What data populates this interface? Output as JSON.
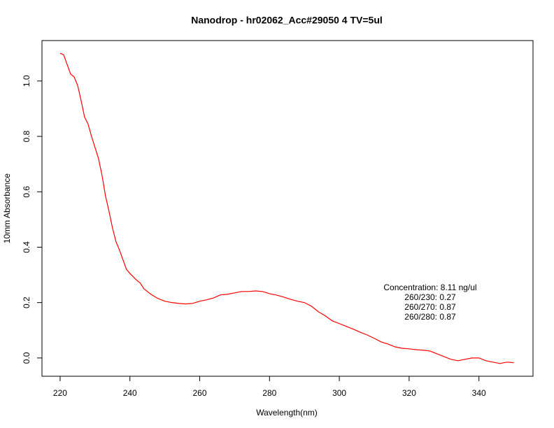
{
  "chart_data": {
    "type": "line",
    "title": "Nanodrop - hr02062_Acc#29050 4 TV=5ul",
    "x_label": "Wavelength(nm)",
    "y_label": "10mm Absorbance",
    "annotation": [
      "Concentration: 8.11 ng/ul",
      "260/230: 0.27",
      "260/270: 0.87",
      "260/280: 0.87"
    ],
    "x": [
      220,
      221,
      223,
      224,
      225,
      226,
      227,
      228,
      229,
      231,
      232,
      233,
      234,
      235,
      236,
      237,
      238,
      239,
      240,
      242,
      243,
      244,
      245,
      246,
      248,
      250,
      252,
      254,
      256,
      258,
      260,
      262,
      264,
      266,
      268,
      270,
      272,
      274,
      276,
      278,
      280,
      282,
      284,
      286,
      288,
      290,
      292,
      294,
      296,
      298,
      300,
      302,
      304,
      306,
      308,
      310,
      312,
      314,
      316,
      318,
      320,
      322,
      324,
      326,
      328,
      330,
      332,
      334,
      336,
      338,
      340,
      342,
      344,
      346,
      348,
      350
    ],
    "series": [
      {
        "color": "#ff0000",
        "values": [
          1.1,
          1.095,
          1.025,
          1.015,
          0.985,
          0.93,
          0.87,
          0.845,
          0.8,
          0.72,
          0.66,
          0.585,
          0.53,
          0.47,
          0.42,
          0.39,
          0.355,
          0.32,
          0.305,
          0.28,
          0.27,
          0.25,
          0.24,
          0.23,
          0.215,
          0.205,
          0.2,
          0.197,
          0.195,
          0.197,
          0.205,
          0.21,
          0.217,
          0.228,
          0.23,
          0.235,
          0.24,
          0.24,
          0.242,
          0.24,
          0.232,
          0.227,
          0.22,
          0.212,
          0.205,
          0.2,
          0.187,
          0.167,
          0.152,
          0.134,
          0.124,
          0.114,
          0.104,
          0.093,
          0.083,
          0.071,
          0.058,
          0.05,
          0.04,
          0.035,
          0.033,
          0.03,
          0.028,
          0.025,
          0.015,
          0.005,
          -0.005,
          -0.01,
          -0.005,
          0,
          0,
          -0.01,
          -0.015,
          -0.02,
          -0.015,
          -0.017
        ]
      }
    ],
    "xlim": [
      214.8,
      355.5
    ],
    "ylim": [
      -0.066,
      1.146
    ],
    "xticks": [
      220,
      240,
      260,
      280,
      300,
      320,
      340
    ],
    "yticks": [
      {
        "value": 0,
        "label": "0.0"
      },
      0.2,
      0.4,
      0.6,
      0.8,
      {
        "value": 1,
        "label": "1.0"
      }
    ]
  }
}
